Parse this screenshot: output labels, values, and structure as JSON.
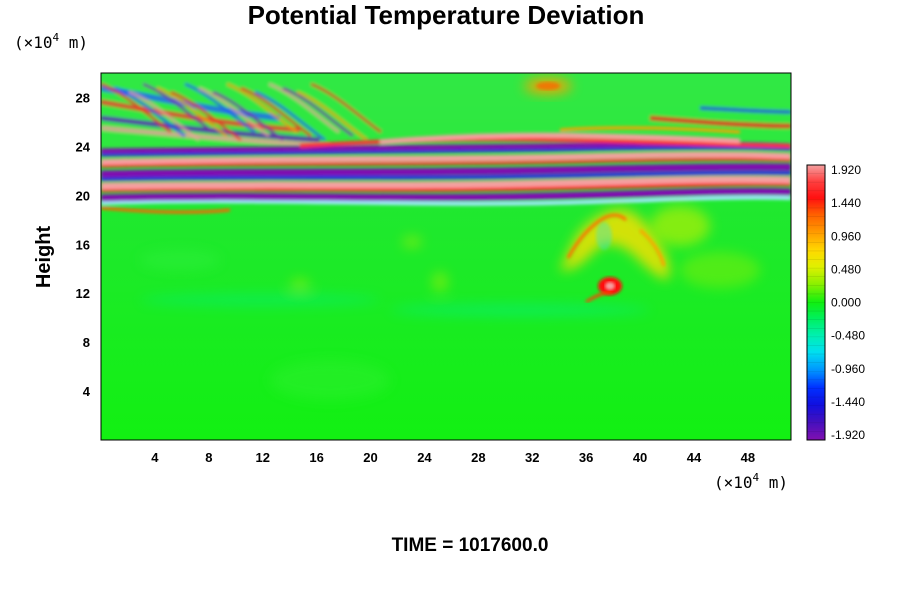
{
  "chart_data": {
    "type": "heatmap",
    "title": "Potential Temperature Deviation",
    "ylabel": "Height",
    "xlabel": "",
    "x_unit_prefix": "(×10",
    "x_unit_exp": "4",
    "x_unit_suffix": " m)",
    "y_unit_prefix": "(×10",
    "y_unit_exp": "4",
    "y_unit_suffix": " m)",
    "xlim": [
      0,
      51.2
    ],
    "ylim": [
      0,
      30
    ],
    "x_ticks": [
      4,
      8,
      12,
      16,
      20,
      24,
      28,
      32,
      36,
      40,
      44,
      48
    ],
    "y_ticks": [
      4,
      8,
      12,
      16,
      20,
      24,
      28
    ],
    "colorbar": {
      "min": -1.92,
      "max": 1.92,
      "ticks": [
        "1.920",
        "1.440",
        "0.960",
        "0.480",
        "0.000",
        "-0.480",
        "-0.960",
        "-1.440",
        "-1.920"
      ]
    },
    "features": [
      {
        "kind": "band",
        "y": 20.3,
        "value": -1.9
      },
      {
        "kind": "band",
        "y": 21.0,
        "value": 1.9
      },
      {
        "kind": "band",
        "y": 21.8,
        "value": -1.9
      },
      {
        "kind": "band",
        "y": 22.5,
        "value": 1.8
      },
      {
        "kind": "band",
        "y": 23.2,
        "value": -1.7
      },
      {
        "kind": "band",
        "y": 24.3,
        "value": 1.3
      },
      {
        "kind": "wave_region",
        "x": [
          0,
          14
        ],
        "y": [
          23,
          30
        ],
        "value": 1.9
      },
      {
        "kind": "blob",
        "x": 33,
        "y": 29,
        "value": 0.9
      },
      {
        "kind": "plume",
        "x": 36.5,
        "y": 17,
        "value": 0.9
      },
      {
        "kind": "blob",
        "x": 37.8,
        "y": 12.5,
        "value": 1.6
      },
      {
        "kind": "background",
        "value": 0.05
      }
    ]
  },
  "footer": {
    "time_text": "TIME = 1017600.0"
  }
}
